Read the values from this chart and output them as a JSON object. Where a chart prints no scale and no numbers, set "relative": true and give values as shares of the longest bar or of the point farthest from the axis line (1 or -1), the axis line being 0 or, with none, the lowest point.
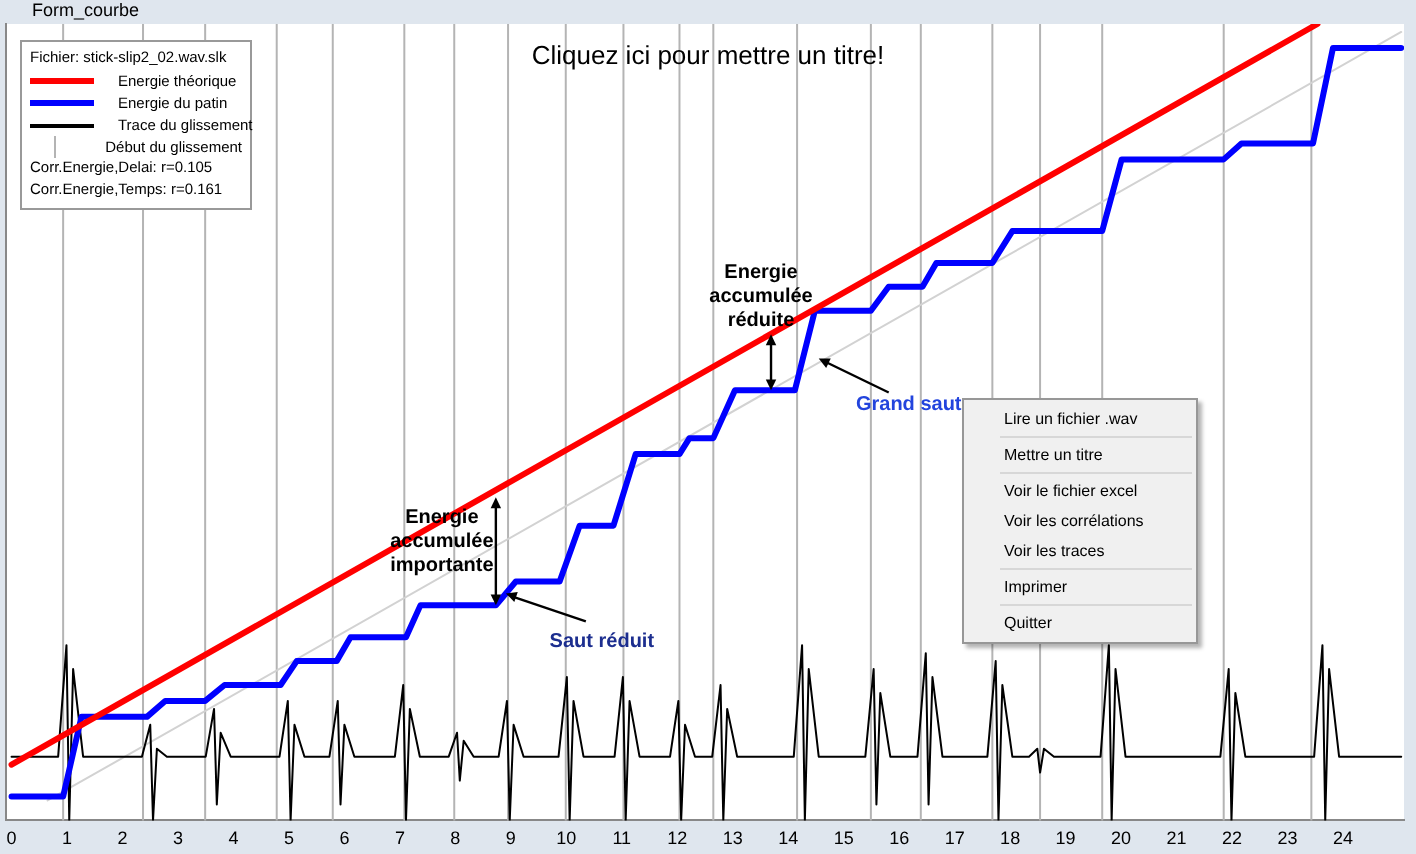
{
  "chart_data": {
    "type": "line",
    "title": "Cliquez ici pour mettre un titre!",
    "legend_title": "Fichier: stick-slip2_02.wav.slk",
    "relative": true,
    "xlim": [
      -0.1,
      25.1
    ],
    "xticks": [
      0,
      1,
      2,
      3,
      4,
      5,
      6,
      7,
      8,
      9,
      10,
      11,
      12,
      13,
      14,
      15,
      16,
      17,
      18,
      19,
      20,
      21,
      22,
      23,
      24
    ],
    "tick_labels": "x",
    "grid": false,
    "legend": "top left",
    "marker": "none",
    "line_style": "solid",
    "series": [
      {
        "name": "Energie théorique",
        "color": "#ff0000",
        "x": [
          0,
          23.54
        ],
        "values": [
          0.07,
          1
        ]
      },
      {
        "name": "Energie du patin",
        "color": "#0000ff",
        "x": [
          0,
          0.93,
          1.26,
          2.44,
          2.77,
          3.49,
          3.84,
          4.85,
          5.14,
          5.86,
          6.11,
          7.11,
          7.37,
          8.73,
          9.09,
          9.88,
          10.24,
          10.85,
          11.25,
          12.04,
          12.22,
          12.65,
          13.04,
          14.12,
          14.48,
          15.49,
          15.81,
          16.42,
          16.67,
          17.68,
          18.04,
          19.66,
          20.01,
          21.85,
          22.17,
          23.46,
          23.82,
          25.05
        ],
        "values": [
          0.03,
          0.03,
          0.13,
          0.13,
          0.15,
          0.15,
          0.17,
          0.17,
          0.2,
          0.2,
          0.23,
          0.23,
          0.27,
          0.27,
          0.3,
          0.3,
          0.37,
          0.37,
          0.46,
          0.46,
          0.48,
          0.48,
          0.54,
          0.54,
          0.64,
          0.64,
          0.67,
          0.67,
          0.7,
          0.7,
          0.74,
          0.74,
          0.83,
          0.83,
          0.85,
          0.85,
          0.97,
          0.97
        ]
      },
      {
        "name": "Trace du glissement",
        "color": "#000000",
        "x": [
          0,
          0.84,
          0.99,
          1.04,
          1.11,
          1.29,
          2.35,
          2.5,
          2.55,
          2.62,
          2.8,
          3.5,
          3.65,
          3.7,
          3.77,
          3.95,
          4.83,
          4.98,
          5.03,
          5.1,
          5.28,
          5.73,
          5.88,
          5.93,
          6,
          6.18,
          6.91,
          7.06,
          7.11,
          7.18,
          7.36,
          7.88,
          8.03,
          8.08,
          8.15,
          8.33,
          8.78,
          8.93,
          8.98,
          9.05,
          9.23,
          9.86,
          10.01,
          10.06,
          10.13,
          10.31,
          10.87,
          11.02,
          11.07,
          11.14,
          11.32,
          11.87,
          12.02,
          12.07,
          12.14,
          12.32,
          12.63,
          12.78,
          12.83,
          12.9,
          13.08,
          14.1,
          14.25,
          14.3,
          14.37,
          14.55,
          15.39,
          15.54,
          15.59,
          15.66,
          15.84,
          16.33,
          16.48,
          16.53,
          16.6,
          16.78,
          17.59,
          17.74,
          17.79,
          17.86,
          18.04,
          18.34,
          18.49,
          18.54,
          18.61,
          18.79,
          19.63,
          19.78,
          19.83,
          19.9,
          20.08,
          21.79,
          21.94,
          21.99,
          22.06,
          22.24,
          23.48,
          23.63,
          23.68,
          23.75,
          23.93,
          25.05
        ],
        "values": [
          0.08,
          0.08,
          0.22,
          0,
          0.19,
          0.08,
          0.08,
          0.12,
          0,
          0.09,
          0.08,
          0.08,
          0.14,
          0.02,
          0.11,
          0.08,
          0.08,
          0.15,
          0,
          0.12,
          0.08,
          0.08,
          0.15,
          0.02,
          0.12,
          0.08,
          0.08,
          0.17,
          0,
          0.14,
          0.08,
          0.08,
          0.11,
          0.05,
          0.1,
          0.08,
          0.08,
          0.15,
          0,
          0.12,
          0.08,
          0.08,
          0.18,
          0,
          0.15,
          0.08,
          0.08,
          0.18,
          0,
          0.15,
          0.08,
          0.08,
          0.15,
          0,
          0.12,
          0.08,
          0.08,
          0.17,
          0,
          0.14,
          0.08,
          0.08,
          0.22,
          0,
          0.19,
          0.08,
          0.08,
          0.19,
          0.02,
          0.16,
          0.08,
          0.08,
          0.21,
          0.02,
          0.18,
          0.08,
          0.08,
          0.2,
          0,
          0.17,
          0.08,
          0.08,
          0.09,
          0.06,
          0.09,
          0.08,
          0.08,
          0.22,
          0,
          0.19,
          0.08,
          0.08,
          0.19,
          0,
          0.16,
          0.08,
          0.08,
          0.22,
          0,
          0.19,
          0.08,
          0.08
        ]
      },
      {
        "color": "#d2d2d2",
        "x": [
          0.65,
          25.05
        ],
        "values": [
          0.025,
          0.99
        ]
      }
    ],
    "ref_lines": [
      {
        "axis": "x",
        "value": 0.93,
        "label": "Début du glissement",
        "color": "#b4b4b4"
      },
      {
        "axis": "x",
        "value": 2.37,
        "color": "#b4b4b4"
      },
      {
        "axis": "x",
        "value": 3.49,
        "color": "#b4b4b4"
      },
      {
        "axis": "x",
        "value": 4.78,
        "color": "#b4b4b4"
      },
      {
        "axis": "x",
        "value": 5.79,
        "color": "#b4b4b4"
      },
      {
        "axis": "x",
        "value": 7.08,
        "color": "#b4b4b4"
      },
      {
        "axis": "x",
        "value": 7.98,
        "color": "#b4b4b4"
      },
      {
        "axis": "x",
        "value": 8.95,
        "color": "#b4b4b4"
      },
      {
        "axis": "x",
        "value": 9.99,
        "color": "#b4b4b4"
      },
      {
        "axis": "x",
        "value": 11.03,
        "color": "#b4b4b4"
      },
      {
        "axis": "x",
        "value": 12.04,
        "color": "#b4b4b4"
      },
      {
        "axis": "x",
        "value": 12.65,
        "color": "#b4b4b4"
      },
      {
        "axis": "x",
        "value": 14.16,
        "color": "#b4b4b4"
      },
      {
        "axis": "x",
        "value": 15.49,
        "color": "#b4b4b4"
      },
      {
        "axis": "x",
        "value": 16.39,
        "color": "#b4b4b4"
      },
      {
        "axis": "x",
        "value": 17.68,
        "color": "#b4b4b4"
      },
      {
        "axis": "x",
        "value": 18.54,
        "color": "#b4b4b4"
      },
      {
        "axis": "x",
        "value": 19.66,
        "color": "#b4b4b4"
      },
      {
        "axis": "x",
        "value": 21.85,
        "color": "#b4b4b4"
      },
      {
        "axis": "x",
        "value": 23.43,
        "color": "#b4b4b4"
      }
    ],
    "annotations": [
      "Corr.Energie,Delai: r=0.105",
      "Corr.Energie,Temps: r=0.161",
      "Form_courbe",
      "Lire un fichier .wav",
      "Mettre un titre",
      "Voir le fichier excel",
      "Voir les corrélations",
      "Voir les traces",
      "Imprimer",
      "Quitter",
      {
        "text": "Energie accumulée importante",
        "x": 8.73,
        "y": 0.27
      },
      {
        "text": "Saut réduit",
        "x": 8.91,
        "y": 0.285
      },
      {
        "text": "Energie accumulée réduite",
        "x": 13.69,
        "y": 0.54
      },
      {
        "text": "Grand saut",
        "x": 14.55,
        "y": 0.58
      }
    ]
  }
}
